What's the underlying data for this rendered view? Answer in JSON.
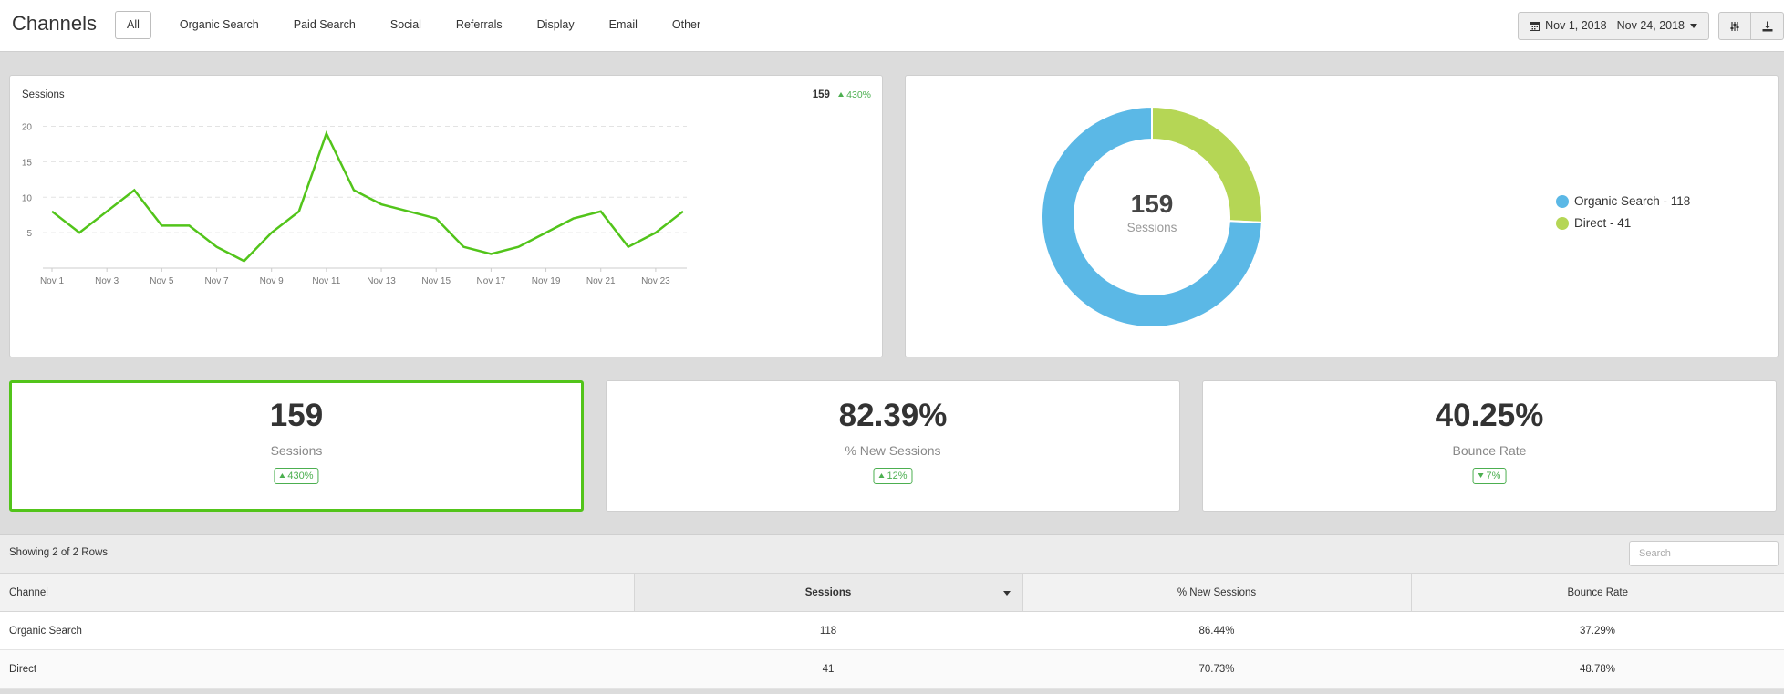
{
  "header": {
    "title": "Channels",
    "tabs": [
      {
        "label": "All",
        "active": true
      },
      {
        "label": "Organic Search"
      },
      {
        "label": "Paid Search"
      },
      {
        "label": "Social"
      },
      {
        "label": "Referrals"
      },
      {
        "label": "Display"
      },
      {
        "label": "Email"
      },
      {
        "label": "Other"
      }
    ],
    "date_range": "Nov 1, 2018 - Nov 24, 2018",
    "icons": [
      "calendar-icon",
      "settings-sliders-icon",
      "download-icon"
    ]
  },
  "line_chart": {
    "title": "Sessions",
    "total": "159",
    "change": "430%"
  },
  "donut": {
    "center_value": "159",
    "center_label": "Sessions",
    "legend": [
      {
        "label": "Organic Search - 118",
        "color": "#5bb8e6"
      },
      {
        "label": "Direct - 41",
        "color": "#b5d655"
      }
    ]
  },
  "chart_data": [
    {
      "type": "line",
      "title": "Sessions",
      "x": [
        "Nov 1",
        "Nov 2",
        "Nov 3",
        "Nov 4",
        "Nov 5",
        "Nov 6",
        "Nov 7",
        "Nov 8",
        "Nov 9",
        "Nov 10",
        "Nov 11",
        "Nov 12",
        "Nov 13",
        "Nov 14",
        "Nov 15",
        "Nov 16",
        "Nov 17",
        "Nov 18",
        "Nov 19",
        "Nov 20",
        "Nov 21",
        "Nov 22",
        "Nov 23",
        "Nov 24"
      ],
      "xticks": [
        "Nov 1",
        "Nov 3",
        "Nov 5",
        "Nov 7",
        "Nov 9",
        "Nov 11",
        "Nov 13",
        "Nov 15",
        "Nov 17",
        "Nov 19",
        "Nov 21",
        "Nov 23"
      ],
      "series": [
        {
          "values": [
            8,
            5,
            8,
            11,
            6,
            6,
            3,
            1,
            5,
            8,
            19,
            11,
            9,
            8,
            7,
            3,
            2,
            3,
            5,
            7,
            8,
            3,
            5,
            8
          ],
          "color": "#52c41a"
        }
      ],
      "yticks": [
        5,
        10,
        15,
        20
      ],
      "ylim": [
        0,
        22
      ],
      "grid": true
    },
    {
      "type": "pie",
      "donut": true,
      "categories": [
        "Organic Search",
        "Direct"
      ],
      "values": [
        118,
        41
      ],
      "colors": [
        "#5bb8e6",
        "#b5d655"
      ],
      "legend": "right"
    }
  ],
  "kpis": [
    {
      "value": "159",
      "label": "Sessions",
      "change": "430%",
      "direction": "up",
      "selected": true
    },
    {
      "value": "82.39%",
      "label": "% New Sessions",
      "change": "12%",
      "direction": "up"
    },
    {
      "value": "40.25%",
      "label": "Bounce Rate",
      "change": "7%",
      "direction": "down"
    }
  ],
  "table": {
    "showing": "Showing 2 of 2 Rows",
    "search_placeholder": "Search",
    "columns": [
      "Channel",
      "Sessions",
      "% New Sessions",
      "Bounce Rate"
    ],
    "sorted_column": "Sessions",
    "rows": [
      [
        "Organic Search",
        "118",
        "86.44%",
        "37.29%"
      ],
      [
        "Direct",
        "41",
        "70.73%",
        "48.78%"
      ]
    ]
  }
}
